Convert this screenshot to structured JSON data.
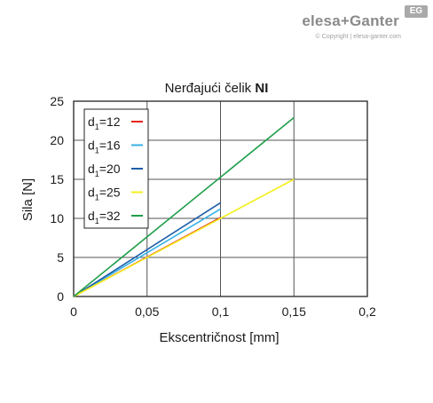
{
  "brand": {
    "logo_text": "elesa+Ganter",
    "badge_text": "EG",
    "copyright": "© Copyright | elesa-ganter.com"
  },
  "chart_data": {
    "type": "line",
    "title_regular": "Nerđajući čelik ",
    "title_bold": "NI",
    "xlabel": "Ekscentričnost [mm]",
    "ylabel": "Sila [N]",
    "xlim": [
      0,
      0.2
    ],
    "ylim": [
      0,
      25
    ],
    "x_ticks": [
      0,
      0.05,
      0.1,
      0.15,
      0.2
    ],
    "x_tick_labels": [
      "0",
      "0,05",
      "0,1",
      "0,15",
      "0,2"
    ],
    "y_ticks": [
      0,
      5,
      10,
      15,
      20,
      25
    ],
    "y_tick_labels": [
      "0",
      "5",
      "10",
      "15",
      "20",
      "25"
    ],
    "grid": true,
    "legend_position": "top-left",
    "series": [
      {
        "name": "12",
        "color": "#e8231c",
        "x": [
          0,
          0.1
        ],
        "y": [
          0,
          10.1
        ]
      },
      {
        "name": "16",
        "color": "#36b2e6",
        "x": [
          0,
          0.1
        ],
        "y": [
          0,
          11.2
        ]
      },
      {
        "name": "20",
        "color": "#1d5ea8",
        "x": [
          0,
          0.1
        ],
        "y": [
          0,
          12.0
        ]
      },
      {
        "name": "25",
        "color": "#f4ef1e",
        "x": [
          0,
          0.15
        ],
        "y": [
          0,
          15.0
        ]
      },
      {
        "name": "32",
        "color": "#1f9e4a",
        "x": [
          0,
          0.15
        ],
        "y": [
          0,
          22.9
        ]
      }
    ]
  }
}
